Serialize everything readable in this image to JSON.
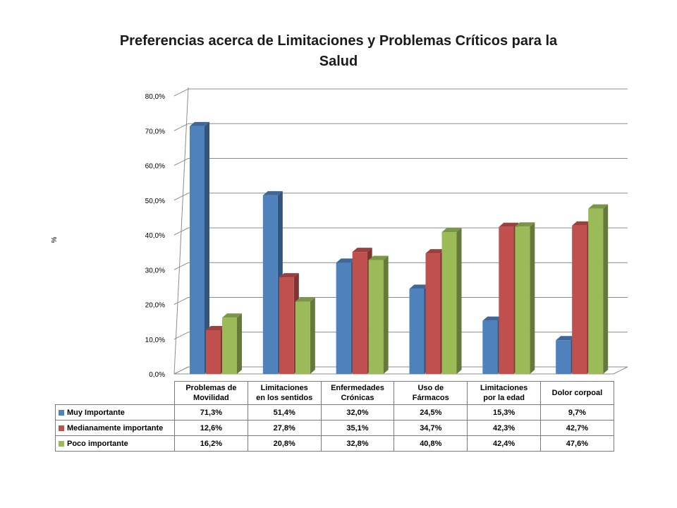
{
  "chart_data": {
    "type": "bar",
    "title": "Preferencias acerca de Limitaciones y Problemas Críticos para la Salud",
    "ylabel": "%",
    "ylim": [
      0,
      80
    ],
    "yticks": [
      "0,0%",
      "10,0%",
      "20,0%",
      "30,0%",
      "40,0%",
      "50,0%",
      "60,0%",
      "70,0%",
      "80,0%"
    ],
    "grid": true,
    "legend": "table-bottom",
    "categories": [
      [
        "Problemas de",
        "Movilidad"
      ],
      [
        "Limitaciones",
        "en los sentidos"
      ],
      [
        "Enfermedades",
        "Crónicas"
      ],
      [
        "Uso de",
        "Fármacos"
      ],
      [
        "Limitaciones",
        "por la edad"
      ],
      [
        "Dolor corpoal"
      ]
    ],
    "series": [
      {
        "name": "Muy Importante",
        "color": "#4f81bd",
        "values": [
          71.3,
          51.4,
          32.0,
          24.5,
          15.3,
          9.7
        ],
        "labels": [
          "71,3%",
          "51,4%",
          "32,0%",
          "24,5%",
          "15,3%",
          "9,7%"
        ]
      },
      {
        "name": "Medianamente importante",
        "color": "#c0504d",
        "values": [
          12.6,
          27.8,
          35.1,
          34.7,
          42.3,
          42.7
        ],
        "labels": [
          "12,6%",
          "27,8%",
          "35,1%",
          "34,7%",
          "42,3%",
          "42,7%"
        ]
      },
      {
        "name": "Poco importante",
        "color": "#9bbb59",
        "values": [
          16.2,
          20.8,
          32.8,
          40.8,
          42.4,
          47.6
        ],
        "labels": [
          "16,2%",
          "20,8%",
          "32,8%",
          "40,8%",
          "42,4%",
          "47,6%"
        ]
      }
    ]
  }
}
